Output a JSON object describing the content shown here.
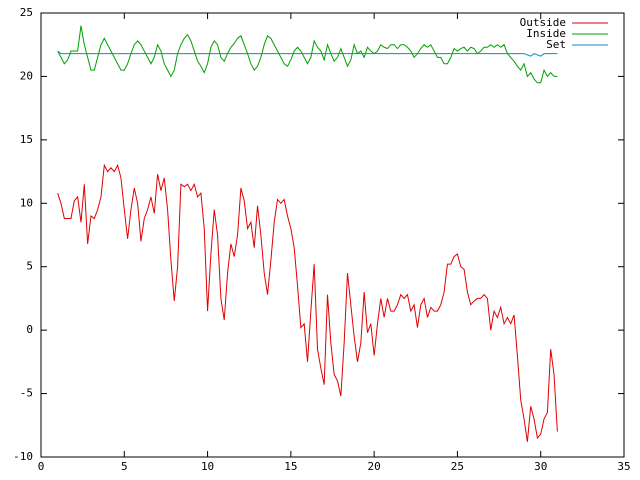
{
  "chart_data": {
    "type": "line",
    "x": [
      1,
      1.2,
      1.4,
      1.6,
      1.8,
      2,
      2.2,
      2.4,
      2.6,
      2.8,
      3,
      3.2,
      3.4,
      3.6,
      3.8,
      4,
      4.2,
      4.4,
      4.6,
      4.8,
      5,
      5.2,
      5.4,
      5.6,
      5.8,
      6,
      6.2,
      6.4,
      6.6,
      6.8,
      7,
      7.2,
      7.4,
      7.6,
      7.8,
      8,
      8.2,
      8.4,
      8.6,
      8.8,
      9,
      9.2,
      9.4,
      9.6,
      9.8,
      10,
      10.2,
      10.4,
      10.6,
      10.8,
      11,
      11.2,
      11.4,
      11.6,
      11.8,
      12,
      12.2,
      12.4,
      12.6,
      12.8,
      13,
      13.2,
      13.4,
      13.6,
      13.8,
      14,
      14.2,
      14.4,
      14.6,
      14.8,
      15,
      15.2,
      15.4,
      15.6,
      15.8,
      16,
      16.2,
      16.4,
      16.6,
      16.8,
      17,
      17.2,
      17.4,
      17.6,
      17.8,
      18,
      18.2,
      18.4,
      18.6,
      18.8,
      19,
      19.2,
      19.4,
      19.6,
      19.8,
      20,
      20.2,
      20.4,
      20.6,
      20.8,
      21,
      21.2,
      21.4,
      21.6,
      21.8,
      22,
      22.2,
      22.4,
      22.6,
      22.8,
      23,
      23.2,
      23.4,
      23.6,
      23.8,
      24,
      24.2,
      24.4,
      24.6,
      24.8,
      25,
      25.2,
      25.4,
      25.6,
      25.8,
      26,
      26.2,
      26.4,
      26.6,
      26.8,
      27,
      27.2,
      27.4,
      27.6,
      27.8,
      28,
      28.2,
      28.4,
      28.6,
      28.8,
      29,
      29.2,
      29.4,
      29.6,
      29.8,
      30,
      30.2,
      30.4,
      30.6,
      30.8,
      31
    ],
    "series": [
      {
        "name": "Outside",
        "color": "#e00000",
        "values": [
          10.8,
          10.0,
          8.8,
          8.8,
          8.8,
          10.2,
          10.5,
          8.5,
          11.5,
          6.8,
          9.0,
          8.8,
          9.5,
          10.5,
          13.0,
          12.5,
          12.8,
          12.5,
          13.0,
          12.0,
          9.5,
          7.2,
          9.5,
          11.2,
          10.0,
          7.0,
          8.8,
          9.5,
          10.5,
          9.2,
          12.3,
          11.0,
          12.0,
          9.5,
          5.5,
          2.3,
          5.0,
          11.5,
          11.3,
          11.5,
          11.0,
          11.5,
          10.5,
          10.8,
          8.0,
          1.5,
          6.0,
          9.5,
          7.5,
          2.5,
          0.8,
          4.5,
          6.8,
          5.8,
          7.5,
          11.2,
          10.2,
          8.0,
          8.5,
          6.5,
          9.8,
          7.5,
          4.5,
          2.8,
          5.5,
          8.5,
          10.3,
          10.0,
          10.3,
          9.0,
          8.0,
          6.5,
          3.5,
          0.2,
          0.5,
          -2.5,
          1.5,
          5.2,
          -1.5,
          -3.0,
          -4.3,
          2.8,
          -1.0,
          -3.5,
          -4.0,
          -5.2,
          -1.0,
          4.5,
          2.0,
          -0.5,
          -2.5,
          -1.0,
          3.0,
          -0.2,
          0.5,
          -2.0,
          0.5,
          2.5,
          1.0,
          2.5,
          1.5,
          1.5,
          2.0,
          2.8,
          2.5,
          2.8,
          1.5,
          2.0,
          0.2,
          2.0,
          2.5,
          1.0,
          1.8,
          1.5,
          1.5,
          2.0,
          3.0,
          5.2,
          5.2,
          5.8,
          6.0,
          5.0,
          4.8,
          3.0,
          2.0,
          2.3,
          2.5,
          2.5,
          2.8,
          2.5,
          0.0,
          1.5,
          1.0,
          1.8,
          0.5,
          1.0,
          0.5,
          1.2,
          -2.0,
          -5.5,
          -7.0,
          -8.8,
          -6.0,
          -7.0,
          -8.5,
          -8.2,
          -7.0,
          -6.5,
          -1.5,
          -3.5,
          -8.0
        ]
      },
      {
        "name": "Inside",
        "color": "#00a000",
        "values": [
          22,
          21.5,
          21,
          21.3,
          22,
          22,
          22,
          24,
          22.5,
          21.5,
          20.5,
          20.5,
          21.5,
          22.5,
          23,
          22.5,
          22,
          21.5,
          21,
          20.5,
          20.5,
          21,
          21.8,
          22.5,
          22.8,
          22.5,
          22,
          21.5,
          21,
          21.5,
          22.5,
          22,
          21,
          20.5,
          20,
          20.5,
          21.8,
          22.5,
          23,
          23.3,
          22.8,
          22,
          21.2,
          20.8,
          20.3,
          21,
          22.3,
          22.8,
          22.5,
          21.5,
          21.2,
          21.8,
          22.3,
          22.6,
          23,
          23.2,
          22.5,
          21.8,
          21,
          20.5,
          20.8,
          21.5,
          22.5,
          23.2,
          23,
          22.5,
          22,
          21.5,
          21,
          20.8,
          21.3,
          22,
          22.3,
          22,
          21.5,
          21,
          21.5,
          22.8,
          22.3,
          22,
          21.3,
          22.5,
          21.8,
          21.2,
          21.5,
          22.2,
          21.5,
          20.8,
          21.3,
          22.5,
          21.8,
          22,
          21.5,
          22.3,
          22,
          21.8,
          22,
          22.5,
          22.3,
          22.2,
          22.5,
          22.5,
          22.2,
          22.5,
          22.5,
          22.3,
          22,
          21.5,
          21.8,
          22.2,
          22.5,
          22.3,
          22.5,
          22,
          21.5,
          21.5,
          21,
          21,
          21.5,
          22.2,
          22,
          22.2,
          22.3,
          22,
          22.3,
          22.2,
          21.8,
          22,
          22.3,
          22.3,
          22.5,
          22.3,
          22.5,
          22.3,
          22.5,
          21.8,
          21.5,
          21.2,
          20.8,
          20.5,
          21,
          20,
          20.3,
          19.8,
          19.5,
          19.5,
          20.5,
          20,
          20.3,
          20,
          20
        ]
      },
      {
        "name": "Set",
        "color": "#0090c8",
        "x": [
          1,
          1.2,
          29,
          29.4,
          29.6,
          30,
          30.2,
          31
        ],
        "values": [
          22,
          21.8,
          21.8,
          21.6,
          21.8,
          21.6,
          21.8,
          21.8
        ]
      }
    ],
    "xlim": [
      0,
      35
    ],
    "xticks": [
      0,
      5,
      10,
      15,
      20,
      25,
      30,
      35
    ],
    "ylim": [
      -10,
      25
    ],
    "yticks": [
      -10,
      -5,
      0,
      5,
      10,
      15,
      20,
      25
    ],
    "legend": "top-right"
  }
}
